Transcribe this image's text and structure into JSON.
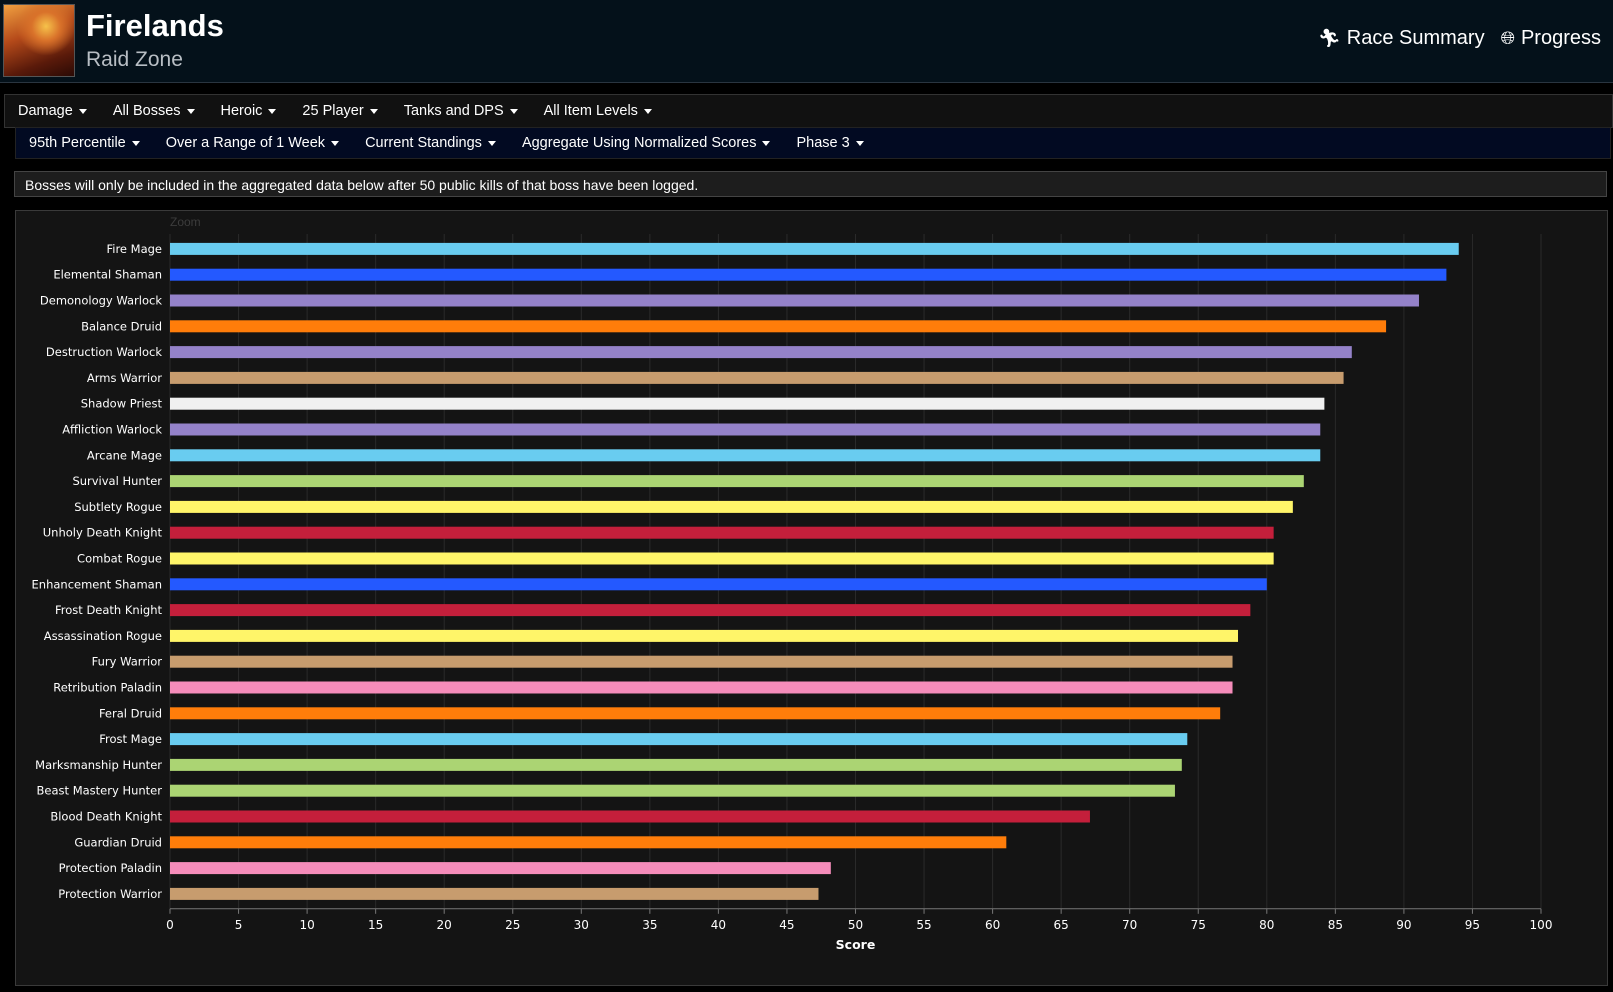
{
  "header": {
    "title": "Firelands",
    "subtitle": "Raid Zone",
    "links": [
      {
        "label": "Race Summary",
        "icon": "runner-icon"
      },
      {
        "label": "Progress",
        "icon": "globe-icon"
      }
    ]
  },
  "filters_row1": [
    "Damage",
    "All Bosses",
    "Heroic",
    "25 Player",
    "Tanks and DPS",
    "All Item Levels"
  ],
  "filters_row2": [
    "95th Percentile",
    "Over a Range of 1 Week",
    "Current Standings",
    "Aggregate Using Normalized Scores",
    "Phase 3"
  ],
  "notice": "Bosses will only be included in the aggregated data below after 50 public kills of that boss have been logged.",
  "zoom_label": "Zoom",
  "colors": {
    "mage": "#69ccf0",
    "shaman": "#2459ff",
    "warlock": "#9482c9",
    "druid": "#ff7d0a",
    "warrior": "#c79c6e",
    "priest": "#f0f0f0",
    "hunter": "#abd473",
    "rogue": "#fff569",
    "death_knight": "#c41f3b",
    "paladin": "#f58cba"
  },
  "chart_data": {
    "type": "bar",
    "orientation": "horizontal",
    "xlabel": "Score",
    "xlim": [
      0,
      100
    ],
    "xticks": [
      0,
      5,
      10,
      15,
      20,
      25,
      30,
      35,
      40,
      45,
      50,
      55,
      60,
      65,
      70,
      75,
      80,
      85,
      90,
      95,
      100
    ],
    "grid": true,
    "categories": [
      "Fire Mage",
      "Elemental Shaman",
      "Demonology Warlock",
      "Balance Druid",
      "Destruction Warlock",
      "Arms Warrior",
      "Shadow Priest",
      "Affliction Warlock",
      "Arcane Mage",
      "Survival Hunter",
      "Subtlety Rogue",
      "Unholy Death Knight",
      "Combat Rogue",
      "Enhancement Shaman",
      "Frost Death Knight",
      "Assassination Rogue",
      "Fury Warrior",
      "Retribution Paladin",
      "Feral Druid",
      "Frost Mage",
      "Marksmanship Hunter",
      "Beast Mastery Hunter",
      "Blood Death Knight",
      "Guardian Druid",
      "Protection Paladin",
      "Protection Warrior"
    ],
    "values": [
      94.0,
      93.1,
      91.1,
      88.7,
      86.2,
      85.6,
      84.2,
      83.9,
      83.9,
      82.7,
      81.9,
      80.5,
      80.5,
      80.0,
      78.8,
      77.9,
      77.5,
      77.5,
      76.6,
      74.2,
      73.8,
      73.3,
      67.1,
      61.0,
      48.2,
      47.3
    ],
    "classes": [
      "mage",
      "shaman",
      "warlock",
      "druid",
      "warlock",
      "warrior",
      "priest",
      "warlock",
      "mage",
      "hunter",
      "rogue",
      "death_knight",
      "rogue",
      "shaman",
      "death_knight",
      "rogue",
      "warrior",
      "paladin",
      "druid",
      "mage",
      "hunter",
      "hunter",
      "death_knight",
      "druid",
      "paladin",
      "warrior"
    ]
  }
}
